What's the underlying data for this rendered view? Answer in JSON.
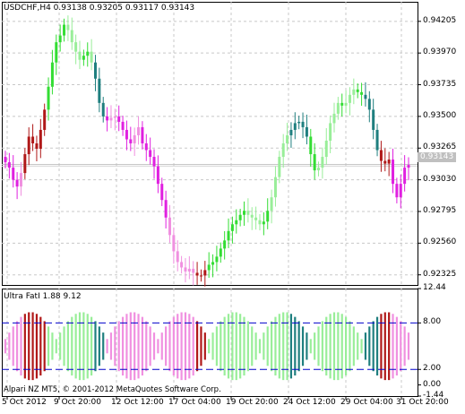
{
  "chart": {
    "symbol_header": "USDCHF,H4  0.93138 0.93205 0.93117 0.93143",
    "current_price_label": "0.93143",
    "price_ticks": [
      "0.94205",
      "0.93970",
      "0.93735",
      "0.93500",
      "0.93265",
      "0.93030",
      "0.92795",
      "0.92560",
      "0.92325"
    ],
    "indicator_label": "Ultra FatI 1.88 9.12",
    "indicator_ticks": [
      "12.44",
      "8.00",
      "2.00",
      "0.00",
      "-1.44"
    ],
    "copyright": "Alpari NZ MT5, © 2001-2012 MetaQuotes Software Corp.",
    "time_ticks": [
      "5 Oct 2012",
      "9 Oct 20:00",
      "12 Oct 12:00",
      "17 Oct 04:00",
      "19 Oct 20:00",
      "24 Oct 12:00",
      "29 Oct 04:00",
      "31 Oct 20:00"
    ],
    "colors": {
      "bright_green": "#33dd33",
      "light_green": "#99ee99",
      "teal": "#1f7f7f",
      "magenta": "#e020e0",
      "pink": "#f090e0",
      "dark_red": "#b01818",
      "grid": "#c8c8c8",
      "level_line": "#0000cc"
    }
  },
  "chart_data": [
    {
      "type": "candlestick",
      "title": "USDCHF,H4",
      "ylim": [
        0.9225,
        0.9435
      ],
      "y_ticks": [
        0.94205,
        0.9397,
        0.93735,
        0.935,
        0.93265,
        0.9303,
        0.92795,
        0.9256,
        0.92325
      ],
      "close_series": [
        0.9316,
        0.9312,
        0.9303,
        0.9298,
        0.9308,
        0.9322,
        0.9335,
        0.933,
        0.9326,
        0.934,
        0.9355,
        0.9372,
        0.939,
        0.9405,
        0.941,
        0.9418,
        0.9414,
        0.9405,
        0.9398,
        0.9392,
        0.9395,
        0.9398,
        0.939,
        0.9378,
        0.936,
        0.935,
        0.9347,
        0.9349,
        0.935,
        0.9346,
        0.934,
        0.9333,
        0.933,
        0.9336,
        0.9342,
        0.933,
        0.9325,
        0.932,
        0.9313,
        0.93,
        0.9288,
        0.9275,
        0.9262,
        0.925,
        0.9242,
        0.9238,
        0.9235,
        0.9237,
        0.9234,
        0.9232,
        0.9232,
        0.9236,
        0.924,
        0.9242,
        0.9246,
        0.9252,
        0.9258,
        0.9265,
        0.927,
        0.9273,
        0.9277,
        0.928,
        0.9277,
        0.9275,
        0.9273,
        0.927,
        0.9272,
        0.928,
        0.929,
        0.9305,
        0.932,
        0.933,
        0.9336,
        0.934,
        0.9345,
        0.9346,
        0.9342,
        0.9335,
        0.9322,
        0.931,
        0.9312,
        0.932,
        0.9332,
        0.9345,
        0.9352,
        0.936,
        0.9358,
        0.936,
        0.9366,
        0.937,
        0.9368,
        0.9366,
        0.9363,
        0.9355,
        0.934,
        0.9325,
        0.9317,
        0.9315,
        0.9318,
        0.93,
        0.929,
        0.93,
        0.9312,
        0.9314
      ],
      "current": 0.93143
    },
    {
      "type": "histogram",
      "title": "Ultra FatI",
      "values_header": [
        1.88,
        9.12
      ],
      "ylim": [
        -1.44,
        12.44
      ],
      "levels": [
        8.0,
        2.0
      ],
      "y_ticks": [
        12.44,
        8.0,
        2.0,
        0.0,
        -1.44
      ]
    }
  ]
}
